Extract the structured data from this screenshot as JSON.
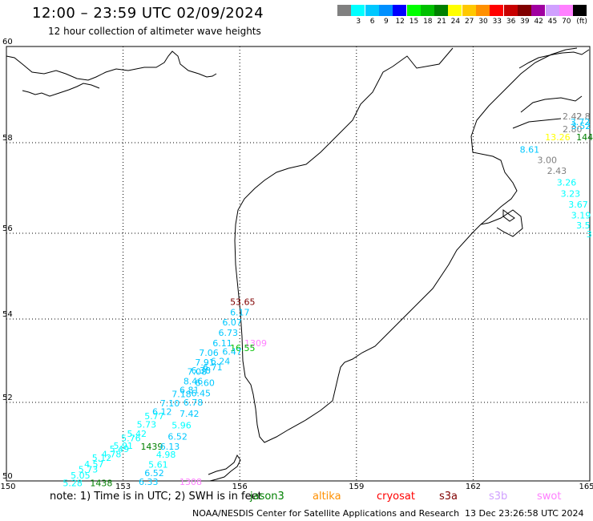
{
  "header": {
    "title": "12:00 – 23:59 UTC 02/09/2024",
    "subtitle": "12 hour collection of altimeter wave heights"
  },
  "legend": {
    "unit": "(ft)",
    "bins": [
      {
        "color": "#808080",
        "label": ""
      },
      {
        "color": "#00ffff",
        "label": "3"
      },
      {
        "color": "#00c8ff",
        "label": "6"
      },
      {
        "color": "#0090ff",
        "label": "9"
      },
      {
        "color": "#0000ff",
        "label": "12"
      },
      {
        "color": "#00ff00",
        "label": "15"
      },
      {
        "color": "#00c000",
        "label": "18"
      },
      {
        "color": "#008000",
        "label": "21"
      },
      {
        "color": "#ffff00",
        "label": "24"
      },
      {
        "color": "#ffc800",
        "label": "27"
      },
      {
        "color": "#ff9000",
        "label": "30"
      },
      {
        "color": "#ff0000",
        "label": "33"
      },
      {
        "color": "#c80000",
        "label": "36"
      },
      {
        "color": "#800000",
        "label": "39"
      },
      {
        "color": "#a000a0",
        "label": "42"
      },
      {
        "color": "#d0a0ff",
        "label": "45"
      },
      {
        "color": "#ff80ff",
        "label": "70"
      },
      {
        "color": "#000000",
        "label": ""
      }
    ]
  },
  "map": {
    "lon_ticks": [
      "150",
      "153",
      "156",
      "159",
      "162",
      "165"
    ],
    "lat_ticks": [
      "50",
      "52",
      "54",
      "56",
      "58",
      "60"
    ],
    "observations": [
      {
        "text": "2.42",
        "lon": 164.3,
        "lat": 58.55,
        "color": "#808080"
      },
      {
        "text": "2.8",
        "lon": 164.85,
        "lat": 58.55,
        "color": "#808080"
      },
      {
        "text": "3.72",
        "lon": 164.5,
        "lat": 58.43,
        "color": "#00c8ff"
      },
      {
        "text": "2.80",
        "lon": 164.3,
        "lat": 58.28,
        "color": "#808080"
      },
      {
        "text": "3.52",
        "lon": 164.55,
        "lat": 58.35,
        "color": "#00c8ff"
      },
      {
        "text": "13.26",
        "lon": 163.85,
        "lat": 58.12,
        "color": "#ffff00"
      },
      {
        "text": "144",
        "lon": 164.8,
        "lat": 58.12,
        "color": "#008000"
      },
      {
        "text": "8.61",
        "lon": 163.2,
        "lat": 57.85,
        "color": "#00c8ff"
      },
      {
        "text": "3.00",
        "lon": 163.65,
        "lat": 57.62,
        "color": "#808080"
      },
      {
        "text": "2.43",
        "lon": 163.9,
        "lat": 57.38,
        "color": "#808080"
      },
      {
        "text": "3.26",
        "lon": 164.15,
        "lat": 57.12,
        "color": "#00ffff"
      },
      {
        "text": "3.23",
        "lon": 164.25,
        "lat": 56.88,
        "color": "#00ffff"
      },
      {
        "text": "3.67",
        "lon": 164.45,
        "lat": 56.64,
        "color": "#00ffff"
      },
      {
        "text": "3.19",
        "lon": 164.72,
        "lat": 56.4,
        "color": "#00ffff"
      },
      {
        "text": "3.5",
        "lon": 164.92,
        "lat": 56.18,
        "color": "#00ffff"
      },
      {
        "text": "3",
        "lon": 165.03,
        "lat": 55.98,
        "color": "#00ffff"
      },
      {
        "text": "53.65",
        "lon": 155.75,
        "lat": 54.4,
        "color": "#800000"
      },
      {
        "text": "6.17",
        "lon": 155.75,
        "lat": 54.16,
        "color": "#00c8ff"
      },
      {
        "text": "6.07",
        "lon": 155.55,
        "lat": 53.92,
        "color": "#00c8ff"
      },
      {
        "text": "6.73",
        "lon": 155.45,
        "lat": 53.67,
        "color": "#00c8ff"
      },
      {
        "text": "1309",
        "lon": 156.12,
        "lat": 53.42,
        "color": "#ff80ff"
      },
      {
        "text": "6.11",
        "lon": 155.3,
        "lat": 53.42,
        "color": "#00c8ff"
      },
      {
        "text": "16.55",
        "lon": 155.75,
        "lat": 53.31,
        "color": "#00c000"
      },
      {
        "text": "6.47",
        "lon": 155.55,
        "lat": 53.22,
        "color": "#00c8ff"
      },
      {
        "text": "7.06",
        "lon": 154.95,
        "lat": 53.19,
        "color": "#00c8ff"
      },
      {
        "text": "6.24",
        "lon": 155.25,
        "lat": 52.99,
        "color": "#00c8ff"
      },
      {
        "text": "7.91",
        "lon": 154.85,
        "lat": 52.96,
        "color": "#00c8ff"
      },
      {
        "text": "6.71",
        "lon": 155.05,
        "lat": 52.85,
        "color": "#00c8ff"
      },
      {
        "text": "7.08",
        "lon": 154.65,
        "lat": 52.74,
        "color": "#00c8ff"
      },
      {
        "text": "6.38",
        "lon": 154.75,
        "lat": 52.77,
        "color": "#00c8ff"
      },
      {
        "text": "8.46",
        "lon": 154.55,
        "lat": 52.51,
        "color": "#00c8ff"
      },
      {
        "text": "6.60",
        "lon": 154.85,
        "lat": 52.47,
        "color": "#00c8ff"
      },
      {
        "text": "6.81",
        "lon": 154.45,
        "lat": 52.3,
        "color": "#00c8ff"
      },
      {
        "text": "7.18",
        "lon": 154.25,
        "lat": 52.2,
        "color": "#00c8ff"
      },
      {
        "text": "6.45",
        "lon": 154.75,
        "lat": 52.22,
        "color": "#00c8ff"
      },
      {
        "text": "7.10",
        "lon": 153.95,
        "lat": 51.98,
        "color": "#00c8ff"
      },
      {
        "text": "6.78",
        "lon": 154.55,
        "lat": 52.0,
        "color": "#00c8ff"
      },
      {
        "text": "6.12",
        "lon": 153.75,
        "lat": 51.77,
        "color": "#00c8ff"
      },
      {
        "text": "7.42",
        "lon": 154.45,
        "lat": 51.71,
        "color": "#00c8ff"
      },
      {
        "text": "5.77",
        "lon": 153.55,
        "lat": 51.65,
        "color": "#00ffff"
      },
      {
        "text": "5.73",
        "lon": 153.35,
        "lat": 51.44,
        "color": "#00ffff"
      },
      {
        "text": "5.96",
        "lon": 154.25,
        "lat": 51.42,
        "color": "#00ffff"
      },
      {
        "text": "5.42",
        "lon": 153.1,
        "lat": 51.2,
        "color": "#00ffff"
      },
      {
        "text": "6.52",
        "lon": 154.15,
        "lat": 51.13,
        "color": "#00c8ff"
      },
      {
        "text": "5.76",
        "lon": 152.95,
        "lat": 51.09,
        "color": "#00ffff"
      },
      {
        "text": "5.91",
        "lon": 152.75,
        "lat": 50.9,
        "color": "#00ffff"
      },
      {
        "text": "1439",
        "lon": 153.45,
        "lat": 50.88,
        "color": "#008000"
      },
      {
        "text": "6.13",
        "lon": 153.95,
        "lat": 50.88,
        "color": "#00c8ff"
      },
      {
        "text": "5.49",
        "lon": 152.65,
        "lat": 50.82,
        "color": "#00ffff"
      },
      {
        "text": "4.78",
        "lon": 152.45,
        "lat": 50.68,
        "color": "#00ffff"
      },
      {
        "text": "4.98",
        "lon": 153.85,
        "lat": 50.67,
        "color": "#00ffff"
      },
      {
        "text": "5.12",
        "lon": 152.2,
        "lat": 50.59,
        "color": "#00ffff"
      },
      {
        "text": "4.57",
        "lon": 152.0,
        "lat": 50.43,
        "color": "#00ffff"
      },
      {
        "text": "5.61",
        "lon": 153.65,
        "lat": 50.42,
        "color": "#00ffff"
      },
      {
        "text": "5.73",
        "lon": 151.85,
        "lat": 50.3,
        "color": "#00ffff"
      },
      {
        "text": "6.52",
        "lon": 153.55,
        "lat": 50.2,
        "color": "#00c8ff"
      },
      {
        "text": "5.05",
        "lon": 151.65,
        "lat": 50.14,
        "color": "#00ffff"
      },
      {
        "text": "5.28",
        "lon": 151.45,
        "lat": 49.95,
        "color": "#00ffff"
      },
      {
        "text": "1438",
        "lon": 152.15,
        "lat": 49.95,
        "color": "#008000"
      },
      {
        "text": "6.33",
        "lon": 153.4,
        "lat": 49.98,
        "color": "#00c8ff"
      },
      {
        "text": "1308",
        "lon": 154.45,
        "lat": 49.98,
        "color": "#ff80ff"
      }
    ]
  },
  "footer": {
    "note": "note: 1) Time is in UTC; 2) SWH is in feet",
    "satellites": [
      {
        "name": "jason3",
        "color": "#008000"
      },
      {
        "name": "altika",
        "color": "#ff9000"
      },
      {
        "name": "cryosat",
        "color": "#ff0000"
      },
      {
        "name": "s3a",
        "color": "#800000"
      },
      {
        "name": "s3b",
        "color": "#d0a0ff"
      },
      {
        "name": "swot",
        "color": "#ff80ff"
      }
    ],
    "credit": "NOAA/NESDIS Center for Satellite Applications and Research",
    "timestamp": "13 Dec 23:26:58 UTC 2024"
  }
}
